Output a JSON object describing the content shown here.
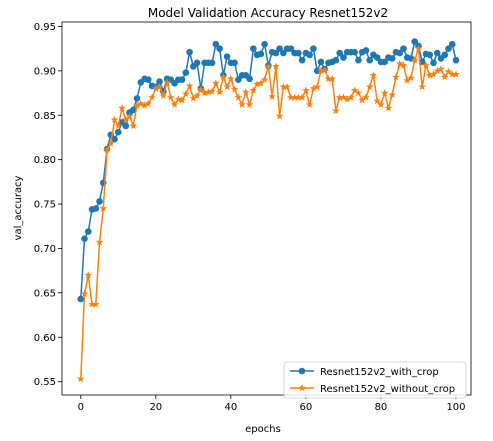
{
  "chart_data": {
    "type": "line",
    "title": "Model Validation Accuracy Resnet152v2",
    "xlabel": "epochs",
    "ylabel": "val_accuracy",
    "xlim": [
      -5,
      104
    ],
    "ylim": [
      0.535,
      0.955
    ],
    "xticks": [
      0,
      20,
      40,
      60,
      80,
      100
    ],
    "yticks": [
      0.55,
      0.6,
      0.65,
      0.7,
      0.75,
      0.8,
      0.85,
      0.9,
      0.95
    ],
    "grid": false,
    "legend": "lower-right",
    "x": [
      0,
      1,
      2,
      3,
      4,
      5,
      6,
      7,
      8,
      9,
      10,
      11,
      12,
      13,
      14,
      15,
      16,
      17,
      18,
      19,
      20,
      21,
      22,
      23,
      24,
      25,
      26,
      27,
      28,
      29,
      30,
      31,
      32,
      33,
      34,
      35,
      36,
      37,
      38,
      39,
      40,
      41,
      42,
      43,
      44,
      45,
      46,
      47,
      48,
      49,
      50,
      51,
      52,
      53,
      54,
      55,
      56,
      57,
      58,
      59,
      60,
      61,
      62,
      63,
      64,
      65,
      66,
      67,
      68,
      69,
      70,
      71,
      72,
      73,
      74,
      75,
      76,
      77,
      78,
      79,
      80,
      81,
      82,
      83,
      84,
      85,
      86,
      87,
      88,
      89,
      90,
      91,
      92,
      93,
      94,
      95,
      96,
      97,
      98,
      99,
      100
    ],
    "series": [
      {
        "name": "Resnet152v2_with_crop",
        "color": "#1f77b4",
        "marker": "circle",
        "values": [
          0.643,
          0.711,
          0.719,
          0.744,
          0.745,
          0.753,
          0.774,
          0.812,
          0.828,
          0.823,
          0.831,
          0.842,
          0.838,
          0.853,
          0.856,
          0.869,
          0.887,
          0.891,
          0.89,
          0.883,
          0.882,
          0.888,
          0.877,
          0.891,
          0.89,
          0.886,
          0.89,
          0.89,
          0.898,
          0.921,
          0.905,
          0.909,
          0.88,
          0.909,
          0.909,
          0.909,
          0.93,
          0.925,
          0.895,
          0.916,
          0.909,
          0.909,
          0.89,
          0.895,
          0.895,
          0.891,
          0.925,
          0.918,
          0.919,
          0.93,
          0.906,
          0.921,
          0.92,
          0.925,
          0.92,
          0.925,
          0.925,
          0.92,
          0.92,
          0.912,
          0.92,
          0.918,
          0.925,
          0.9,
          0.91,
          0.902,
          0.909,
          0.91,
          0.912,
          0.92,
          0.915,
          0.921,
          0.921,
          0.921,
          0.912,
          0.921,
          0.923,
          0.912,
          0.918,
          0.915,
          0.91,
          0.91,
          0.915,
          0.914,
          0.921,
          0.92,
          0.925,
          0.915,
          0.914,
          0.933,
          0.928,
          0.91,
          0.919,
          0.918,
          0.909,
          0.92,
          0.914,
          0.918,
          0.925,
          0.93,
          0.912
        ]
      },
      {
        "name": "Resnet152v2_without_crop",
        "color": "#ff7f0e",
        "marker": "star",
        "values": [
          0.553,
          0.649,
          0.67,
          0.637,
          0.637,
          0.707,
          0.745,
          0.811,
          0.818,
          0.845,
          0.838,
          0.858,
          0.845,
          0.849,
          0.838,
          0.861,
          0.863,
          0.861,
          0.863,
          0.87,
          0.88,
          0.882,
          0.872,
          0.887,
          0.87,
          0.862,
          0.868,
          0.867,
          0.874,
          0.883,
          0.869,
          0.872,
          0.879,
          0.875,
          0.876,
          0.877,
          0.886,
          0.876,
          0.893,
          0.882,
          0.891,
          0.879,
          0.87,
          0.862,
          0.876,
          0.862,
          0.878,
          0.885,
          0.886,
          0.89,
          0.905,
          0.871,
          0.905,
          0.849,
          0.882,
          0.882,
          0.87,
          0.87,
          0.87,
          0.87,
          0.878,
          0.862,
          0.88,
          0.882,
          0.9,
          0.901,
          0.891,
          0.891,
          0.855,
          0.87,
          0.87,
          0.868,
          0.87,
          0.878,
          0.875,
          0.867,
          0.87,
          0.882,
          0.895,
          0.866,
          0.862,
          0.875,
          0.858,
          0.873,
          0.893,
          0.908,
          0.906,
          0.889,
          0.892,
          0.912,
          0.925,
          0.882,
          0.906,
          0.895,
          0.896,
          0.9,
          0.902,
          0.893,
          0.899,
          0.896,
          0.896
        ]
      }
    ]
  }
}
